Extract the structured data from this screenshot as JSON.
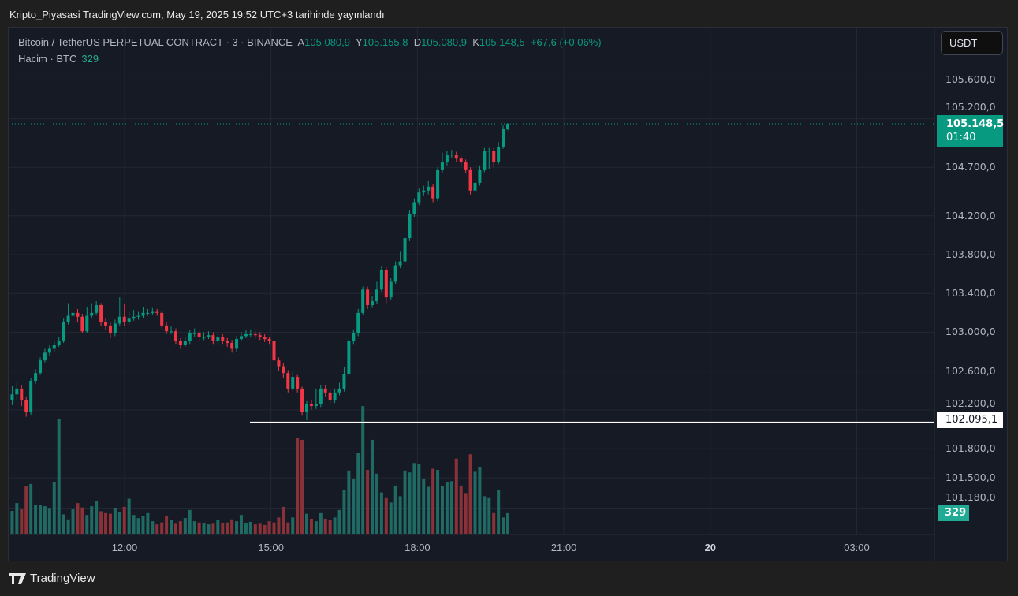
{
  "published": "Kripto_Piyasasi TradingView.com, May 19, 2025 19:52 UTC+3 tarihinde yayınlandı",
  "legend": {
    "symbol": "Bitcoin / TetherUS PERPETUAL CONTRACT · 3 · BINANCE",
    "open_label": "A",
    "open": "105.080,9",
    "high_label": "Y",
    "high": "105.155,8",
    "low_label": "D",
    "low": "105.080,9",
    "close_label": "K",
    "close": "105.148,5",
    "change": "+67,6 (+0,06%)",
    "volume_label": "Hacim · BTC",
    "volume": "329"
  },
  "currency_button": "USDT",
  "price_axis": {
    "ticks": [
      "105.600,0",
      "105.200,0",
      "104.700,0",
      "104.200,0",
      "103.800,0",
      "103.400,0",
      "103.000,0",
      "102.600,0",
      "102.200,0",
      "101.800,0",
      "101.500,0",
      "101.180,0"
    ],
    "last_price_label": "105.148,5",
    "countdown": "01:40",
    "horizontal_line_label": "102.095,1",
    "volume_label": "329"
  },
  "time_axis": {
    "ticks": [
      "12:00",
      "15:00",
      "18:00",
      "21:00",
      "20",
      "03:00"
    ]
  },
  "logo_text": "TradingView",
  "colors": {
    "up": "#089981",
    "down": "#f23645",
    "volume_up": "#1f6a63",
    "volume_down": "#8b3138",
    "background": "#161a25",
    "grid": "#232733"
  },
  "chart_data": {
    "type": "candlestick",
    "interval": "3",
    "time_range": [
      "09:33",
      "19:51"
    ],
    "price_ticks": [
      105600,
      105200,
      104700,
      104200,
      103800,
      103400,
      103000,
      102600,
      102200,
      101800,
      101500,
      101180
    ],
    "time_ticks_hours": [
      12,
      15,
      18,
      21,
      24,
      27
    ],
    "first_open": 102300,
    "close": [
      102360,
      102420,
      102300,
      102180,
      102500,
      102580,
      102710,
      102790,
      102830,
      102870,
      102910,
      103110,
      103170,
      103200,
      103160,
      103010,
      103170,
      103200,
      103280,
      103110,
      103070,
      102990,
      103090,
      103160,
      103110,
      103140,
      103160,
      103170,
      103200,
      103200,
      103210,
      103200,
      103070,
      103010,
      103010,
      102910,
      102870,
      102910,
      102990,
      102990,
      102950,
      102950,
      102970,
      102910,
      102950,
      102910,
      102890,
      102830,
      102930,
      102960,
      102980,
      102980,
      102970,
      102950,
      102930,
      102910,
      102710,
      102650,
      102580,
      102420,
      102540,
      102420,
      102180,
      102260,
      102240,
      102260,
      102420,
      102380,
      102300,
      102380,
      102420,
      102570,
      102910,
      102990,
      103200,
      103440,
      103280,
      103320,
      103440,
      103640,
      103360,
      103520,
      103690,
      103730,
      103970,
      104220,
      104340,
      104440,
      104460,
      104500,
      104380,
      104670,
      104750,
      104830,
      104830,
      104790,
      104750,
      104670,
      104460,
      104540,
      104670,
      104870,
      104870,
      104750,
      104910,
      105100,
      105148.5
    ],
    "high": [
      102450,
      102480,
      102460,
      102330,
      102530,
      102620,
      102740,
      102830,
      102870,
      102910,
      102950,
      103140,
      103300,
      103260,
      103240,
      103190,
      103260,
      103300,
      103320,
      103300,
      103150,
      103100,
      103130,
      103360,
      103290,
      103210,
      103230,
      103210,
      103260,
      103240,
      103250,
      103240,
      103220,
      103100,
      103060,
      103040,
      102940,
      102950,
      103020,
      103040,
      103020,
      103000,
      103010,
      103000,
      102990,
      102980,
      102940,
      102920,
      102960,
      103000,
      103020,
      103030,
      103010,
      103000,
      102980,
      102950,
      102930,
      102740,
      102680,
      102610,
      102590,
      102560,
      102440,
      102290,
      102300,
      102420,
      102460,
      102460,
      102410,
      102420,
      102480,
      102640,
      102940,
      103030,
      103240,
      103470,
      103470,
      103370,
      103520,
      103680,
      103670,
      103560,
      103730,
      103830,
      104010,
      104260,
      104380,
      104480,
      104510,
      104560,
      104530,
      104700,
      104850,
      104870,
      104880,
      104860,
      104830,
      104780,
      104700,
      104580,
      104720,
      104900,
      104900,
      104900,
      104960,
      105130,
      105155.8
    ],
    "low": [
      102250,
      102300,
      102240,
      102130,
      102150,
      102470,
      102560,
      102690,
      102760,
      102800,
      102850,
      102890,
      103080,
      103120,
      103100,
      102990,
      102990,
      103140,
      103180,
      103060,
      103020,
      102940,
      102960,
      103060,
      103060,
      103080,
      103120,
      103130,
      103150,
      103170,
      103180,
      103170,
      103040,
      102980,
      102980,
      102880,
      102830,
      102850,
      102880,
      102950,
      102900,
      102920,
      102930,
      102880,
      102880,
      102880,
      102850,
      102790,
      102800,
      102910,
      102940,
      102950,
      102940,
      102920,
      102900,
      102880,
      102690,
      102600,
      102530,
      102380,
      102400,
      102380,
      102140,
      102095.1,
      102200,
      102210,
      102230,
      102340,
      102270,
      102270,
      102350,
      102390,
      102550,
      102880,
      102960,
      103180,
      103240,
      103250,
      103290,
      103410,
      103300,
      103330,
      103500,
      103660,
      103700,
      103940,
      104190,
      104310,
      104410,
      104420,
      104340,
      104350,
      104640,
      104720,
      104800,
      104760,
      104720,
      104640,
      104420,
      104430,
      104510,
      104650,
      104680,
      104700,
      104730,
      104890,
      105080.9
    ],
    "volume": [
      365,
      490,
      390,
      755,
      795,
      465,
      465,
      440,
      400,
      820,
      1840,
      310,
      230,
      390,
      490,
      420,
      300,
      440,
      520,
      360,
      330,
      320,
      410,
      340,
      430,
      560,
      300,
      250,
      280,
      330,
      200,
      150,
      180,
      280,
      220,
      160,
      200,
      250,
      380,
      200,
      180,
      170,
      150,
      160,
      220,
      170,
      180,
      230,
      200,
      300,
      170,
      190,
      150,
      160,
      140,
      200,
      180,
      260,
      430,
      180,
      260,
      1530,
      1500,
      320,
      240,
      200,
      330,
      240,
      220,
      260,
      380,
      700,
      1010,
      880,
      1290,
      2040,
      1020,
      1500,
      960,
      660,
      570,
      500,
      770,
      600,
      1010,
      980,
      1130,
      1110,
      870,
      750,
      1040,
      1020,
      760,
      820,
      840,
      1200,
      770,
      650,
      1270,
      990,
      1060,
      600,
      570,
      330,
      700,
      260,
      329
    ],
    "last_price": 105148.5,
    "horizontal_line": 102095.1
  }
}
